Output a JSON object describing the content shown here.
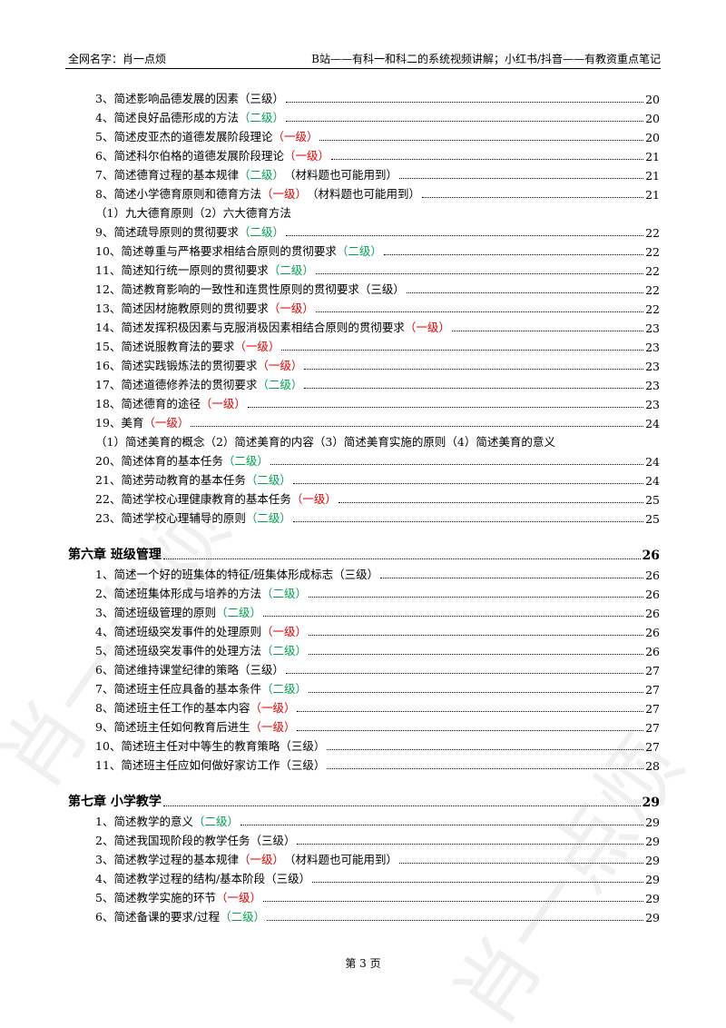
{
  "header": {
    "left": "全网名字：肖一点烦",
    "right": "B站——有科一和科二的系统视频讲解；小红书/抖音——有教资重点笔记"
  },
  "watermark": "肖一点烦",
  "sections": [
    {
      "items": [
        {
          "text": "3、简述影响品德发展的因素",
          "level": "（三级）",
          "level_color": "#000000",
          "page": 20
        },
        {
          "text": "4、简述良好品德形成的方法",
          "level": "（二级）",
          "level_color": "#00a050",
          "page": 20
        },
        {
          "text": "5、简述皮亚杰的道德发展阶段理论",
          "level": "（一级）",
          "level_color": "#e00000",
          "page": 20
        },
        {
          "text": "6、简述科尔伯格的道德发展阶段理论",
          "level": "（一级）",
          "level_color": "#e00000",
          "page": 21
        },
        {
          "text": "7、简述德育过程的基本规律",
          "level": "（二级）",
          "level_color": "#00a050",
          "note": "（材料题也可能用到）",
          "page": 21
        },
        {
          "text": "8、简述小学德育原则和德育方法",
          "level": "（一级）",
          "level_color": "#e00000",
          "note": "（材料题也可能用到）",
          "page": 21
        },
        {
          "text": "（1）九大德育原则（2）六大德育方法"
        },
        {
          "text": "9、简述疏导原则的贯彻要求",
          "level": "（二级）",
          "level_color": "#00a050",
          "page": 22
        },
        {
          "text": "10、简述尊重与严格要求相结合原则的贯彻要求",
          "level": "（二级）",
          "level_color": "#00a050",
          "page": 22
        },
        {
          "text": "11、简述知行统一原则的贯彻要求",
          "level": "（二级）",
          "level_color": "#00a050",
          "page": 22
        },
        {
          "text": "12、简述教育影响的一致性和连贯性原则的贯彻要求",
          "level": "（三级）",
          "level_color": "#000000",
          "page": 22
        },
        {
          "text": "13、简述因材施教原则的贯彻要求",
          "level": "（一级）",
          "level_color": "#e00000",
          "page": 22
        },
        {
          "text": "14、简述发挥积极因素与克服消极因素相结合原则的贯彻要求",
          "level": "（一级）",
          "level_color": "#e00000",
          "page": 23
        },
        {
          "text": "15、简述说服教育法的要求",
          "level": "（一级）",
          "level_color": "#e00000",
          "page": 23
        },
        {
          "text": "16、简述实践锻炼法的贯彻要求",
          "level": "（一级）",
          "level_color": "#e00000",
          "page": 23
        },
        {
          "text": "17、简述道德修养法的贯彻要求",
          "level": "（二级）",
          "level_color": "#00a050",
          "page": 23
        },
        {
          "text": "18、简述德育的途径",
          "level": "（一级）",
          "level_color": "#e00000",
          "page": 23
        },
        {
          "text": "19、美育",
          "level": "（一级）",
          "level_color": "#e00000",
          "page": 24
        },
        {
          "text": "（1）简述美育的概念（2）简述美育的内容（3）简述美育实施的原则（4）简述美育的意义"
        },
        {
          "text": "20、简述体育的基本任务",
          "level": "（二级）",
          "level_color": "#00a050",
          "page": 24
        },
        {
          "text": "21、简述劳动教育的基本任务",
          "level": "（二级）",
          "level_color": "#00a050",
          "page": 24
        },
        {
          "text": "22、简述学校心理健康教育的基本任务",
          "level": "（一级）",
          "level_color": "#e00000",
          "page": 25
        },
        {
          "text": "23、简述学校心理辅导的原则",
          "level": "（二级）",
          "level_color": "#00a050",
          "page": 25
        }
      ]
    },
    {
      "title": "第六章  班级管理",
      "page": 26,
      "items": [
        {
          "text": "1、简述一个好的班集体的特征/班集体形成标志",
          "level": "（三级）",
          "level_color": "#000000",
          "page": 26
        },
        {
          "text": "2、简述班集体形成与培养的方法",
          "level": "（二级）",
          "level_color": "#00a050",
          "page": 26
        },
        {
          "text": "3、简述班级管理的原则",
          "level": "（二级）",
          "level_color": "#00a050",
          "page": 26
        },
        {
          "text": "4、简述班级突发事件的处理原则",
          "level": "（一级）",
          "level_color": "#e00000",
          "page": 26
        },
        {
          "text": "5、简述班级突发事件的处理方法",
          "level": "（二级）",
          "level_color": "#00a050",
          "page": 26
        },
        {
          "text": "6、简述维持课堂纪律的策略",
          "level": "（三级）",
          "level_color": "#000000",
          "page": 27
        },
        {
          "text": "7、简述班主任应具备的基本条件",
          "level": "（二级）",
          "level_color": "#00a050",
          "page": 27
        },
        {
          "text": "8、简述班主任工作的基本内容",
          "level": "（一级）",
          "level_color": "#e00000",
          "page": 27
        },
        {
          "text": "9、简述班主任如何教育后进生",
          "level": "（一级）",
          "level_color": "#e00000",
          "page": 27
        },
        {
          "text": "10、简述班主任对中等生的教育策略",
          "level": "（三级）",
          "level_color": "#000000",
          "page": 27
        },
        {
          "text": "11、简述班主任应如何做好家访工作",
          "level": "（三级）",
          "level_color": "#000000",
          "page": 28
        }
      ]
    },
    {
      "title": "第七章  小学教学",
      "page": 29,
      "items": [
        {
          "text": "1、简述教学的意义",
          "level": "（二级）",
          "level_color": "#00a050",
          "page": 29
        },
        {
          "text": "2、简述我国现阶段的教学任务",
          "level": "（三级）",
          "level_color": "#000000",
          "page": 29
        },
        {
          "text": "3、简述教学过程的基本规律",
          "level": "（一级）",
          "level_color": "#e00000",
          "note": "（材料题也可能用到）",
          "page": 29
        },
        {
          "text": "4、简述教学过程的结构/基本阶段",
          "level": "（三级）",
          "level_color": "#000000",
          "page": 29
        },
        {
          "text": "5、简述教学实施的环节",
          "level": "（一级）",
          "level_color": "#e00000",
          "page": 29
        },
        {
          "text": "6、简述备课的要求/过程",
          "level": "（二级）",
          "level_color": "#00a050",
          "page": 29
        }
      ]
    }
  ],
  "footer": "第 3 页"
}
